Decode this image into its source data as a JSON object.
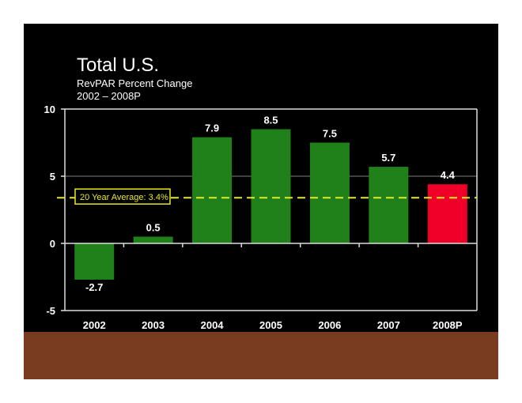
{
  "title": "Total U.S.",
  "subtitle": "RevPAR Percent Change",
  "subtitle2": "2002 – 2008P",
  "chart_data": {
    "type": "bar",
    "title": "Total U.S.",
    "subtitle": "RevPAR Percent Change 2002 – 2008P",
    "categories": [
      "2002",
      "2003",
      "2004",
      "2005",
      "2006",
      "2007",
      "2008P"
    ],
    "values": [
      -2.7,
      0.5,
      7.9,
      8.5,
      7.5,
      5.7,
      4.4
    ],
    "value_labels": [
      "-2.7",
      "0.5",
      "7.9",
      "8.5",
      "7.5",
      "5.7",
      "4.4"
    ],
    "colors": [
      "#20801a",
      "#20801a",
      "#20801a",
      "#20801a",
      "#20801a",
      "#20801a",
      "#f00028"
    ],
    "ylim": [
      -5,
      10
    ],
    "yticks": [
      -5,
      0,
      5,
      10
    ],
    "ytick_labels": [
      "-5",
      "0",
      "5",
      "10"
    ],
    "grid": true,
    "reference_line": {
      "value": 3.4,
      "label": "20 Year Average: 3.4%",
      "color": "#e8e820"
    }
  }
}
